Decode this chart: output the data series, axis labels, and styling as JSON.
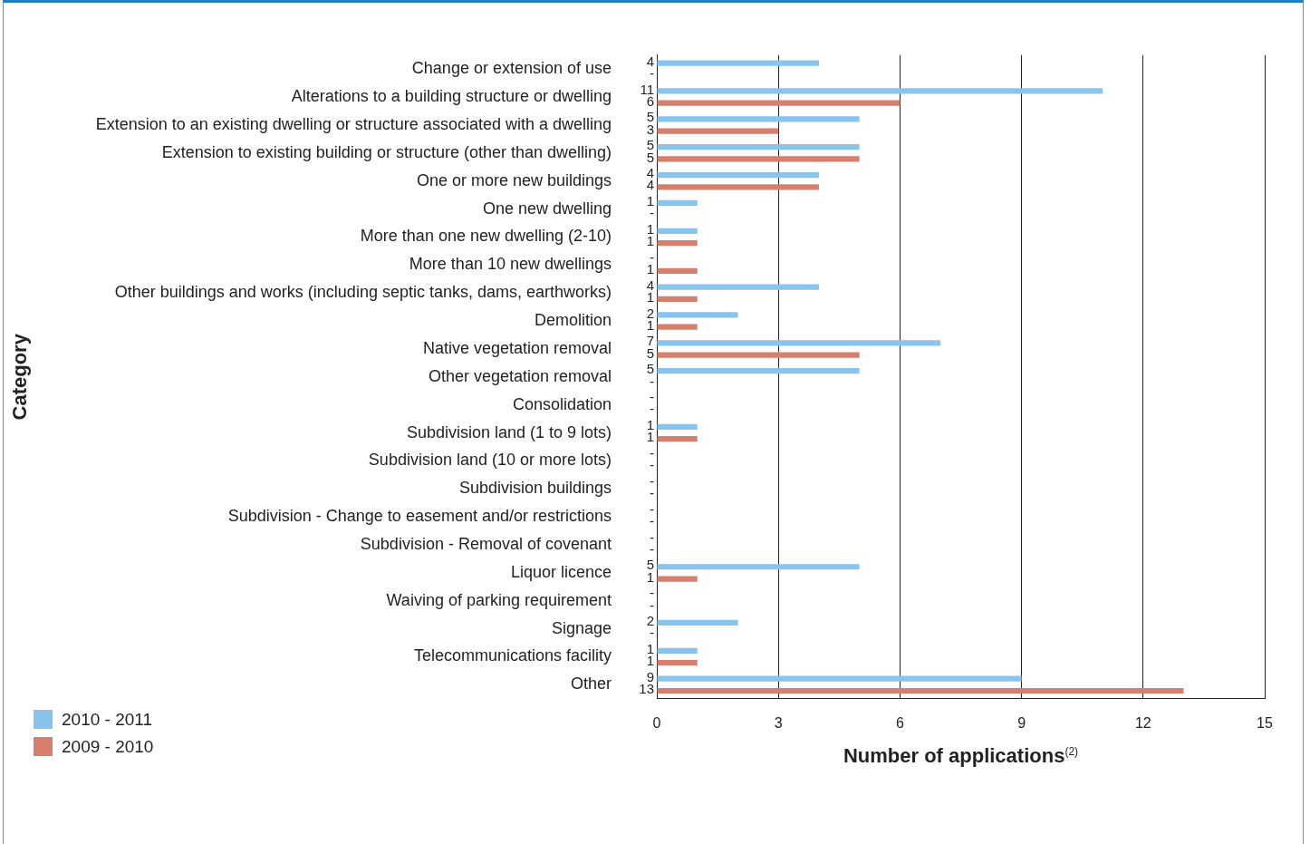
{
  "chart_data": {
    "type": "bar",
    "orientation": "horizontal",
    "ylabel": "Category",
    "xlabel": "Number of applications$^{(2)}$",
    "categories": [
      "Change or extension of use",
      "Alterations to a building structure or dwelling",
      "Extension to an existing dwelling or structure associated with a dwelling",
      "Extension to existing building or structure (other than dwelling)",
      "One or more new buildings",
      "One new dwelling",
      "More than one new dwelling (2-10)",
      "More than 10 new dwellings",
      "Other buildings and works (including septic tanks, dams, earthworks)",
      "Demolition",
      "Native vegetation removal",
      "Other vegetation removal",
      "Consolidation",
      "Subdivision land (1 to 9 lots)",
      "Subdivision land (10 or more lots)",
      "Subdivision buildings",
      "Subdivision - Change to easement and/or restrictions",
      "Subdivision - Removal of covenant",
      "Liquor licence",
      "Waiving of parking requirement",
      "Signage",
      "Telecommunications facility",
      "Other"
    ],
    "series": [
      {
        "name": "2010 - 2011",
        "color": "#89c4ec",
        "values": [
          4,
          11,
          5,
          5,
          4,
          1,
          1,
          0,
          4,
          2,
          7,
          5,
          0,
          1,
          0,
          0,
          0,
          0,
          5,
          0,
          2,
          1,
          9
        ],
        "value_labels": [
          "4",
          "11",
          "5",
          "5",
          "4",
          "1",
          "1",
          "-",
          "4",
          "2",
          "7",
          "5",
          "-",
          "1",
          "-",
          "-",
          "-",
          "-",
          "5",
          "-",
          "2",
          "1",
          "9"
        ]
      },
      {
        "name": "2009 - 2010",
        "color": "#d67f6c",
        "values": [
          0,
          6,
          3,
          5,
          4,
          0,
          1,
          1,
          1,
          1,
          5,
          0,
          0,
          1,
          0,
          0,
          0,
          0,
          1,
          0,
          0,
          1,
          13
        ],
        "value_labels": [
          "-",
          "6",
          "3",
          "5",
          "4",
          "-",
          "1",
          "1",
          "1",
          "1",
          "5",
          "-",
          "-",
          "1",
          "-",
          "-",
          "-",
          "-",
          "1",
          "-",
          "-",
          "1",
          "13"
        ]
      }
    ],
    "xlim": [
      0,
      15
    ],
    "xticks": [
      0,
      3,
      6,
      9,
      12,
      15
    ],
    "grid": "x",
    "legend": "bottom left"
  }
}
